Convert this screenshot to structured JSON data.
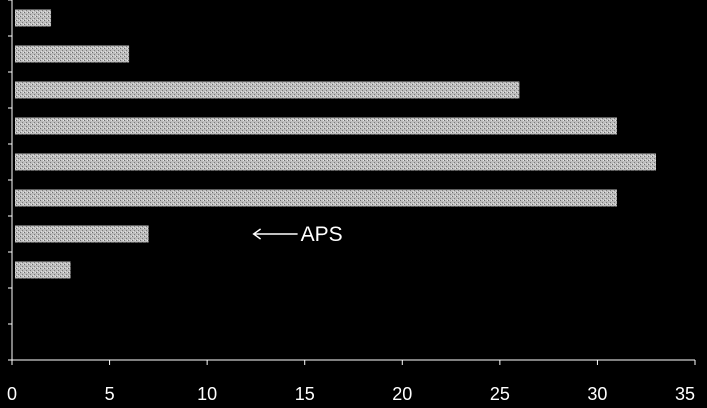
{
  "chart_data": {
    "type": "bar",
    "orientation": "horizontal",
    "categories": [
      "",
      "",
      "",
      "",
      "",
      "",
      "",
      ""
    ],
    "values": [
      2,
      6,
      26,
      31,
      33,
      31,
      7,
      3
    ],
    "xlim": [
      0,
      35
    ],
    "xticks": [
      0,
      5,
      10,
      15,
      20,
      25,
      30,
      35
    ],
    "title": "",
    "xlabel": "",
    "ylabel": "",
    "grid": false,
    "annotations": [
      {
        "text": "APS",
        "target_index": 6,
        "arrow": "pointing-left"
      }
    ],
    "colors": {
      "background": "#000000",
      "bar": "#c4c4c4",
      "text": "#ffffff",
      "axis": "#ffffff"
    }
  }
}
